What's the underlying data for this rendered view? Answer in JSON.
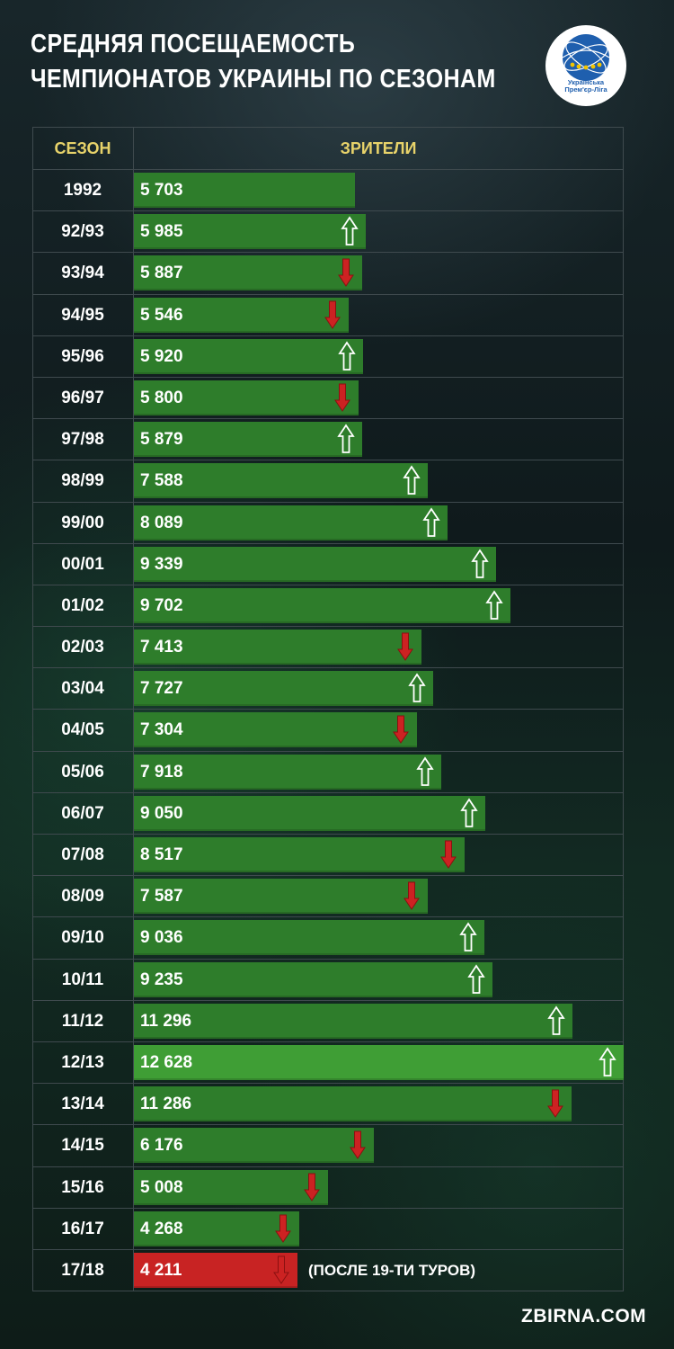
{
  "title_line1": "СРЕДНЯЯ ПОСЕЩАЕМОСТЬ",
  "title_line2": "ЧЕМПИОНАТОВ УКРАИНЫ ПО СЕЗОНАМ",
  "logo_text_line1": "Українська",
  "logo_text_line2": "Прем'єр-Ліга",
  "source": "ZBIRNA.COM",
  "colors": {
    "bar": "#2e7d2b",
    "bar_max": "#3f9e35",
    "bar_current": "#c82323",
    "arrow_up": "#ffffff",
    "arrow_down": "#cc2222",
    "header_text": "#e8d36a"
  },
  "chart_data": {
    "type": "bar",
    "orientation": "horizontal",
    "title": "СРЕДНЯЯ ПОСЕЩАЕМОСТЬ ЧЕМПИОНАТОВ УКРАИНЫ ПО СЕЗОНАМ",
    "column_headers": [
      "СЕЗОН",
      "ЗРИТЕЛИ"
    ],
    "categories": [
      "1992",
      "92/93",
      "93/94",
      "94/95",
      "95/96",
      "96/97",
      "97/98",
      "98/99",
      "99/00",
      "00/01",
      "01/02",
      "02/03",
      "03/04",
      "04/05",
      "05/06",
      "06/07",
      "07/08",
      "08/09",
      "09/10",
      "10/11",
      "11/12",
      "12/13",
      "13/14",
      "14/15",
      "15/16",
      "16/17",
      "17/18"
    ],
    "values": [
      5703,
      5985,
      5887,
      5546,
      5920,
      5800,
      5879,
      7588,
      8089,
      9339,
      9702,
      7413,
      7727,
      7304,
      7918,
      9050,
      8517,
      7587,
      9036,
      9235,
      11296,
      12628,
      11286,
      6176,
      5008,
      4268,
      4211
    ],
    "labels": [
      "5 703",
      "5 985",
      "5 887",
      "5 546",
      "5 920",
      "5 800",
      "5 879",
      "7 588",
      "8 089",
      "9 339",
      "9 702",
      "7 413",
      "7 727",
      "7 304",
      "7 918",
      "9 050",
      "8 517",
      "7 587",
      "9 036",
      "9 235",
      "11 296",
      "12 628",
      "11 286",
      "6 176",
      "5 008",
      "4 268",
      "4 211"
    ],
    "trend": [
      "none",
      "up",
      "down",
      "down",
      "up",
      "down",
      "up",
      "up",
      "up",
      "up",
      "up",
      "down",
      "up",
      "down",
      "up",
      "up",
      "down",
      "down",
      "up",
      "up",
      "up",
      "up",
      "down",
      "down",
      "down",
      "down",
      "down"
    ],
    "annotations": [
      {
        "category": "17/18",
        "text": "(ПОСЛЕ 19-ТИ ТУРОВ)"
      }
    ],
    "xlim": [
      0,
      12628
    ]
  }
}
